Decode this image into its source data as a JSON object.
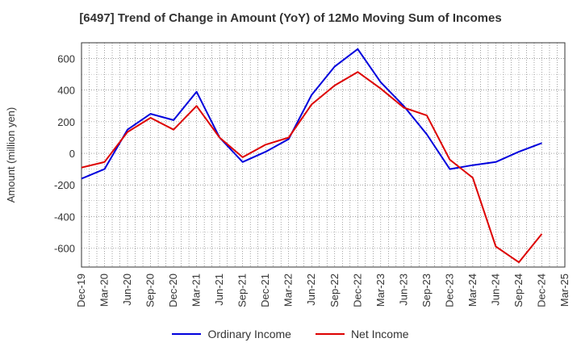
{
  "chart_data": {
    "type": "line",
    "title": "[6497]  Trend of Change in Amount (YoY) of 12Mo Moving Sum of Incomes",
    "ylabel": "Amount (million yen)",
    "xlabel": "",
    "ylim": [
      -720,
      700
    ],
    "yticks": [
      -600,
      -400,
      -200,
      0,
      200,
      400,
      600
    ],
    "categories": [
      "Dec-19",
      "Mar-20",
      "Jun-20",
      "Sep-20",
      "Dec-20",
      "Mar-21",
      "Jun-21",
      "Sep-21",
      "Dec-21",
      "Mar-22",
      "Jun-22",
      "Sep-22",
      "Dec-22",
      "Mar-23",
      "Jun-23",
      "Sep-23",
      "Dec-23",
      "Mar-24",
      "Jun-24",
      "Sep-24",
      "Dec-24",
      "Mar-25"
    ],
    "grid": true,
    "legend_position": "bottom",
    "series": [
      {
        "name": "Ordinary Income",
        "color": "#0000dd",
        "values": [
          -160,
          -100,
          150,
          250,
          210,
          390,
          100,
          -55,
          10,
          90,
          370,
          550,
          660,
          450,
          300,
          120,
          -100,
          -75,
          -55,
          10,
          65,
          null
        ]
      },
      {
        "name": "Net Income",
        "color": "#dd0000",
        "values": [
          -90,
          -55,
          135,
          225,
          150,
          300,
          100,
          -25,
          55,
          100,
          310,
          430,
          515,
          410,
          290,
          240,
          -40,
          -155,
          -590,
          -690,
          -510,
          null
        ]
      }
    ]
  }
}
